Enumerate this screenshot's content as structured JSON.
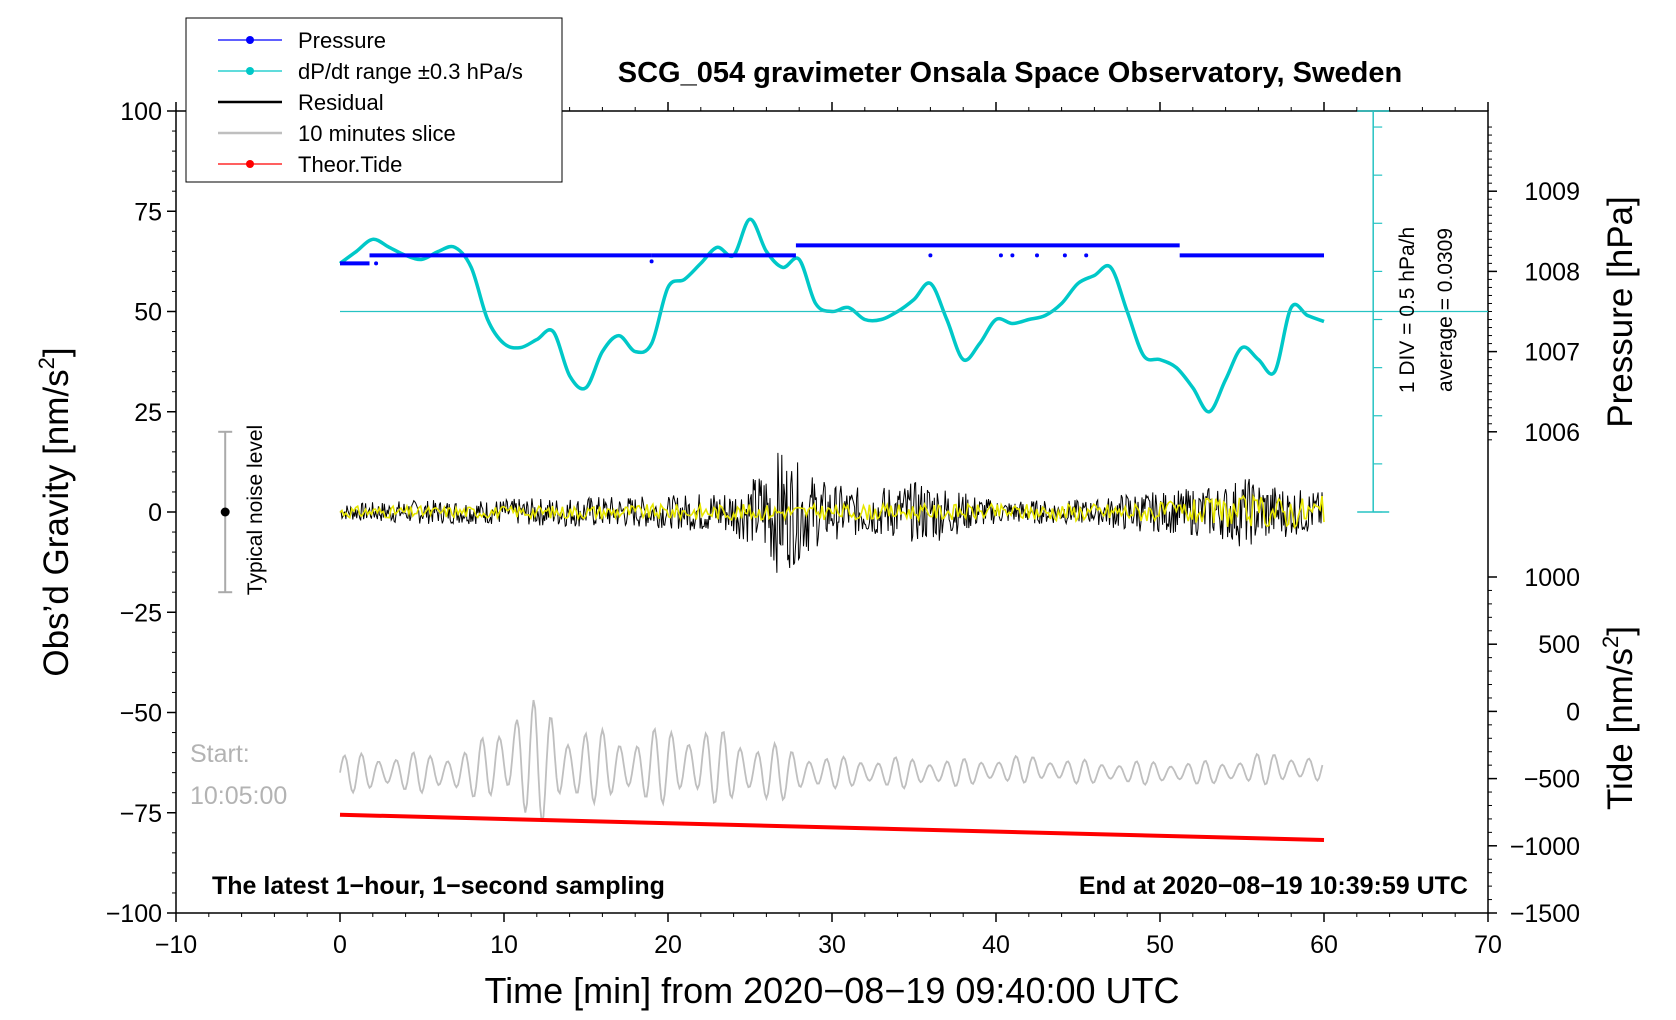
{
  "chart_data": {
    "type": "line",
    "title": "SCG_054 gravimeter Onsala Space Observatory, Sweden",
    "xlabel": "Time [min] from 2020−08−19 09:40:00 UTC",
    "ylabel": "Obs’d Gravity [nm/s2]",
    "ylabel_main": "Obs’d Gravity [nm/s",
    "ylabel_sup": "2",
    "ylabel_end": "]",
    "xlim": [
      -10,
      70
    ],
    "ylim": [
      -100,
      100
    ],
    "x_ticks": [
      "−10",
      "0",
      "10",
      "20",
      "30",
      "40",
      "50",
      "60",
      "70"
    ],
    "y_ticks": [
      "100",
      "75",
      "50",
      "25",
      "0",
      "−25",
      "−50",
      "−75",
      "−100"
    ],
    "pressure_axis": {
      "label": "Pressure [hPa]",
      "ticks": [
        "1009",
        "1008",
        "1007",
        "1006"
      ],
      "tick_values": [
        1009,
        1008,
        1007,
        1006
      ],
      "anchor_gravity": 50,
      "anchor_pressure": 1007.5,
      "gravity_per_hpa": 20
    },
    "tide_axis": {
      "label_main": "Tide [nm/s",
      "label_sup": "2",
      "label_end": "]",
      "ticks": [
        "1000",
        "500",
        "0",
        "−500",
        "−1000",
        "−1500"
      ],
      "tick_values": [
        1000,
        500,
        0,
        -500,
        -1000,
        -1500
      ],
      "range": [
        -1500,
        1000
      ]
    },
    "dpdt_scale": {
      "div_label": "1 DIV = 0.5 hPa/h",
      "average_label": "average = 0.0309",
      "x": 63,
      "y_min": 0,
      "y_max": 100,
      "center": 50
    },
    "legend": {
      "position": "top-left",
      "entries": [
        {
          "label": "Pressure",
          "color": "#0000ff",
          "marker": "dot"
        },
        {
          "label": "dP/dt range ±0.3 hPa/s",
          "color": "#00c8c8",
          "marker": "dot"
        },
        {
          "label": "Residual",
          "color": "#000000",
          "marker": "line"
        },
        {
          "label": "10 minutes slice",
          "color": "#bfbfbf",
          "marker": "line"
        },
        {
          "label": "Theor.Tide",
          "color": "#ff0000",
          "marker": "dot"
        }
      ]
    },
    "noise_bar": {
      "label": "Typical noise level",
      "x": -7,
      "center": 0,
      "half_range": 20
    },
    "annotations": {
      "start_label": "Start:",
      "start_time": "10:05:00",
      "bottom_left": "The latest 1−hour, 1−second sampling",
      "bottom_right": "End at 2020−08−19 10:39:59 UTC"
    },
    "series": [
      {
        "name": "Pressure",
        "color": "#0000ff",
        "segments": [
          {
            "x": [
              0,
              1.8
            ],
            "y": 62
          },
          {
            "x": [
              1.8,
              19.0
            ],
            "y": 64
          },
          {
            "x": [
              19.0,
              27.8
            ],
            "y": 64
          },
          {
            "x": [
              27.8,
              51.2
            ],
            "y": 66.5
          },
          {
            "x": [
              51.2,
              60
            ],
            "y": 64
          }
        ],
        "outliers": [
          {
            "x": 2.2,
            "y": 62
          },
          {
            "x": 19.0,
            "y": 62.5
          },
          {
            "x": 36.0,
            "y": 64
          },
          {
            "x": 40.3,
            "y": 64
          },
          {
            "x": 41.0,
            "y": 64
          },
          {
            "x": 42.5,
            "y": 64
          },
          {
            "x": 44.2,
            "y": 64
          },
          {
            "x": 45.5,
            "y": 64
          }
        ]
      },
      {
        "name": "dP/dt range ±0.3 hPa/s",
        "color": "#00c8c8",
        "x": [
          0,
          1,
          2,
          3,
          4,
          5,
          6,
          7,
          8,
          9,
          10,
          11,
          12,
          13,
          14,
          15,
          16,
          17,
          18,
          19,
          20,
          21,
          22,
          23,
          24,
          25,
          26,
          27,
          28,
          29,
          30,
          31,
          32,
          33,
          34,
          35,
          36,
          37,
          38,
          39,
          40,
          41,
          42,
          43,
          44,
          45,
          46,
          47,
          48,
          49,
          50,
          51,
          52,
          53,
          54,
          55,
          56,
          57,
          58,
          59,
          60
        ],
        "y": [
          62,
          65,
          68,
          66,
          64,
          63,
          65,
          66,
          61,
          48,
          42,
          41,
          43,
          45,
          34,
          31,
          40,
          44,
          40,
          42,
          56,
          58,
          62,
          66,
          64,
          73,
          65,
          61,
          63,
          52,
          50,
          51,
          48,
          48,
          50,
          53,
          57,
          48,
          38,
          42,
          48,
          47,
          48,
          49,
          52,
          57,
          59,
          61,
          50,
          39,
          38,
          36,
          31,
          25,
          33,
          41,
          38,
          35,
          51,
          49,
          47.5
        ]
      },
      {
        "name": "Residual",
        "color": "#000000",
        "x": [
          0,
          4,
          8,
          12,
          16,
          20,
          22,
          24,
          25,
          26,
          26.5,
          27,
          27.5,
          28,
          29,
          30,
          32,
          34,
          36,
          38,
          40,
          42,
          44,
          46,
          48,
          50,
          52,
          54,
          55,
          56,
          58,
          60
        ],
        "amplitude": [
          2,
          3,
          3,
          3.5,
          4,
          4,
          5,
          6,
          8,
          12,
          15,
          16,
          14,
          12,
          9,
          7,
          6,
          7,
          8,
          5,
          3,
          3,
          3,
          3,
          5,
          5,
          6,
          7,
          9,
          8,
          6,
          5
        ]
      },
      {
        "name": "Yellow overlay",
        "color": "#e6e600",
        "x": [
          0,
          10,
          20,
          30,
          40,
          50,
          55,
          60
        ],
        "amplitude": [
          1.5,
          1.5,
          2,
          2,
          2,
          2.5,
          4,
          4
        ]
      },
      {
        "name": "10 minutes slice",
        "color": "#bfbfbf",
        "x": [
          0,
          4,
          8,
          10,
          11,
          12,
          13,
          14,
          16,
          18,
          20,
          22,
          24,
          26,
          28,
          30,
          34,
          38,
          42,
          46,
          50,
          54,
          56,
          58,
          60
        ],
        "center": [
          -65,
          -65,
          -65,
          -62,
          -61,
          -63,
          -62,
          -64,
          -63,
          -64,
          -63,
          -63,
          -64,
          -65,
          -65,
          -65,
          -65,
          -65,
          -64,
          -65,
          -65,
          -65,
          -64,
          -64,
          -64
        ],
        "amplitude": [
          5,
          5,
          6,
          12,
          16,
          16,
          14,
          11,
          9,
          9,
          10,
          10,
          9,
          8,
          6,
          4,
          4,
          3.5,
          3.5,
          3,
          3,
          3,
          4,
          4,
          3
        ]
      },
      {
        "name": "Theor.Tide",
        "color": "#ff0000",
        "x": [
          0,
          60
        ],
        "y": [
          -75.5,
          -81.8
        ]
      }
    ]
  }
}
